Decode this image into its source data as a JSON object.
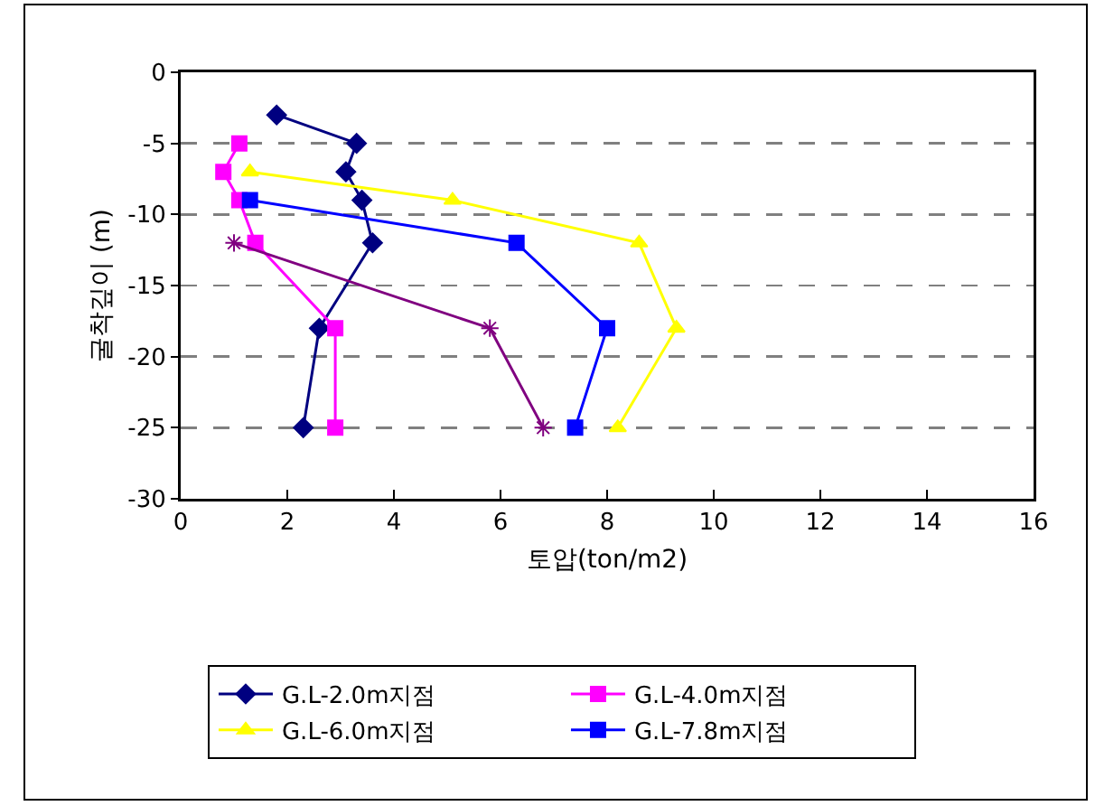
{
  "chart_data": {
    "type": "line",
    "xlabel": "토압(ton/m2)",
    "ylabel": "굴착깊이 (m)",
    "xlim": [
      0,
      16
    ],
    "xticks": [
      0,
      2,
      4,
      6,
      8,
      10,
      12,
      14,
      16
    ],
    "ylim": [
      -30,
      0
    ],
    "yticks": [
      -30,
      -25,
      -20,
      -15,
      -10,
      -5,
      0
    ],
    "grid": "y",
    "legend": "bottom",
    "line_style": "solid",
    "series": [
      {
        "name": "G.L-2.0m지점",
        "color": "#000080",
        "marker": "diamond",
        "x": [
          1.8,
          3.3,
          3.1,
          3.4,
          3.6,
          2.6,
          2.3
        ],
        "values": [
          -3,
          -5,
          -7,
          -9,
          -12,
          -18,
          -25
        ]
      },
      {
        "name": "G.L-4.0m지점",
        "color": "#ff00ff",
        "marker": "square",
        "x": [
          1.1,
          0.8,
          1.1,
          1.4,
          2.9,
          2.9
        ],
        "values": [
          -5,
          -7,
          -9,
          -12,
          -18,
          -25
        ]
      },
      {
        "name": "G.L-6.0m지점",
        "color": "#ffff00",
        "marker": "triangle",
        "x": [
          1.3,
          5.1,
          8.6,
          9.3,
          8.2
        ],
        "values": [
          -7,
          -9,
          -12,
          -18,
          -25
        ]
      },
      {
        "name": "G.L-7.8m지점",
        "color": "#0000ff",
        "marker": "square",
        "x": [
          1.3,
          6.3,
          8.0,
          7.4
        ],
        "values": [
          -9,
          -12,
          -18,
          -25
        ]
      },
      {
        "color": "#800080",
        "marker": "cross",
        "x": [
          1.0,
          5.8,
          6.8
        ],
        "values": [
          -12,
          -18,
          -25
        ]
      }
    ]
  }
}
